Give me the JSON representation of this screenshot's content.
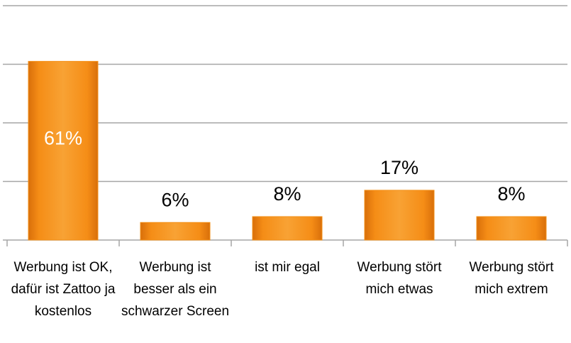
{
  "chart_data": {
    "type": "bar",
    "categories": [
      "Werbung ist OK, dafür ist Zattoo ja kostenlos",
      "Werbung ist besser als ein schwarzer Screen",
      "ist mir egal",
      "Werbung stört mich etwas",
      "Werbung stört mich extrem"
    ],
    "values": [
      61,
      6,
      8,
      17,
      8
    ],
    "value_labels": [
      "61%",
      "6%",
      "8%",
      "17%",
      "8%"
    ],
    "color": "#f39018",
    "ylim": [
      0,
      80
    ],
    "yticks": [
      0,
      20,
      40,
      60,
      80
    ],
    "grid": true
  }
}
